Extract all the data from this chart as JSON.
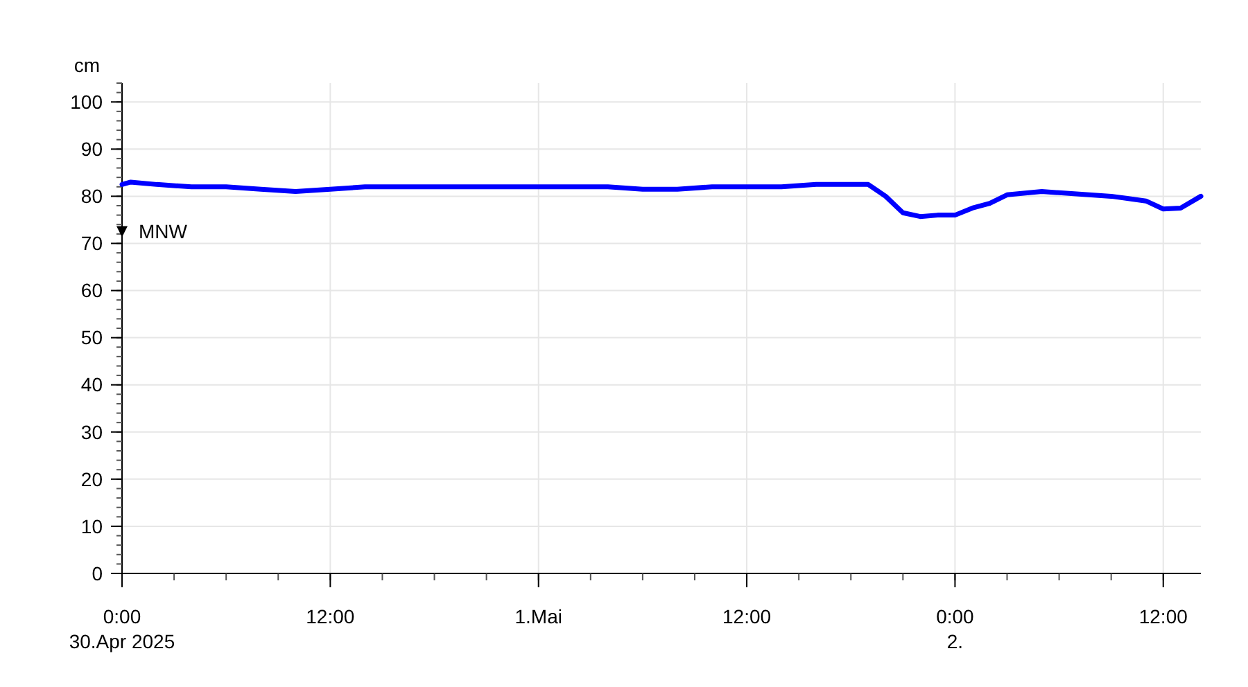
{
  "chart_data": {
    "type": "line",
    "ylabel": "cm",
    "x": [
      "2025-04-30T00:00",
      "2025-04-30T00:30",
      "2025-04-30T02:00",
      "2025-04-30T04:00",
      "2025-04-30T06:00",
      "2025-04-30T08:00",
      "2025-04-30T10:00",
      "2025-04-30T12:00",
      "2025-04-30T14:00",
      "2025-04-30T16:00",
      "2025-04-30T18:00",
      "2025-04-30T20:00",
      "2025-04-30T22:00",
      "2025-05-01T00:00",
      "2025-05-01T02:00",
      "2025-05-01T04:00",
      "2025-05-01T06:00",
      "2025-05-01T08:00",
      "2025-05-01T10:00",
      "2025-05-01T12:00",
      "2025-05-01T14:00",
      "2025-05-01T16:00",
      "2025-05-01T18:00",
      "2025-05-01T19:00",
      "2025-05-01T20:00",
      "2025-05-01T21:00",
      "2025-05-01T22:00",
      "2025-05-01T23:00",
      "2025-05-02T00:00",
      "2025-05-02T01:00",
      "2025-05-02T02:00",
      "2025-05-02T03:00",
      "2025-05-02T05:00",
      "2025-05-02T07:00",
      "2025-05-02T09:00",
      "2025-05-02T10:00",
      "2025-05-02T11:00",
      "2025-05-02T12:00",
      "2025-05-02T13:00",
      "2025-05-02T14:10"
    ],
    "series": [
      {
        "type": "scatter",
        "name": "MNW",
        "x": [
          "2025-04-30T00:00"
        ],
        "values": [
          72.5
        ],
        "color": "#000000",
        "marker": "triangle"
      },
      {
        "color": "#0000ff",
        "values": [
          82.5,
          83,
          82.5,
          82,
          82,
          81.5,
          81,
          81.5,
          82,
          82,
          82,
          82,
          82,
          82,
          82,
          82,
          81.5,
          81.5,
          82,
          82,
          82,
          82.5,
          82.5,
          82.5,
          80,
          76.5,
          75.7,
          76,
          76,
          77.5,
          78.5,
          80.3,
          81,
          80.5,
          80,
          79.5,
          79,
          77.3,
          77.5,
          80
        ]
      }
    ],
    "xlim": [
      "2025-04-30T00:00",
      "2025-05-02T14:10"
    ],
    "xticks": [
      {
        "value": "2025-04-30T00:00",
        "label": "0:00\n30.Apr 2025"
      },
      {
        "value": "2025-04-30T12:00",
        "label": "12:00"
      },
      {
        "value": "2025-05-01T00:00",
        "label": "1.Mai"
      },
      {
        "value": "2025-05-01T12:00",
        "label": "12:00"
      },
      {
        "value": "2025-05-02T00:00",
        "label": "0:00\n2."
      },
      {
        "value": "2025-05-02T12:00",
        "label": "12:00"
      }
    ],
    "ylim": [
      0,
      104
    ],
    "yticks": [
      0,
      10,
      20,
      30,
      40,
      50,
      60,
      70,
      80,
      90,
      100
    ],
    "grid": true,
    "marker": "none",
    "line_style": "solid"
  }
}
